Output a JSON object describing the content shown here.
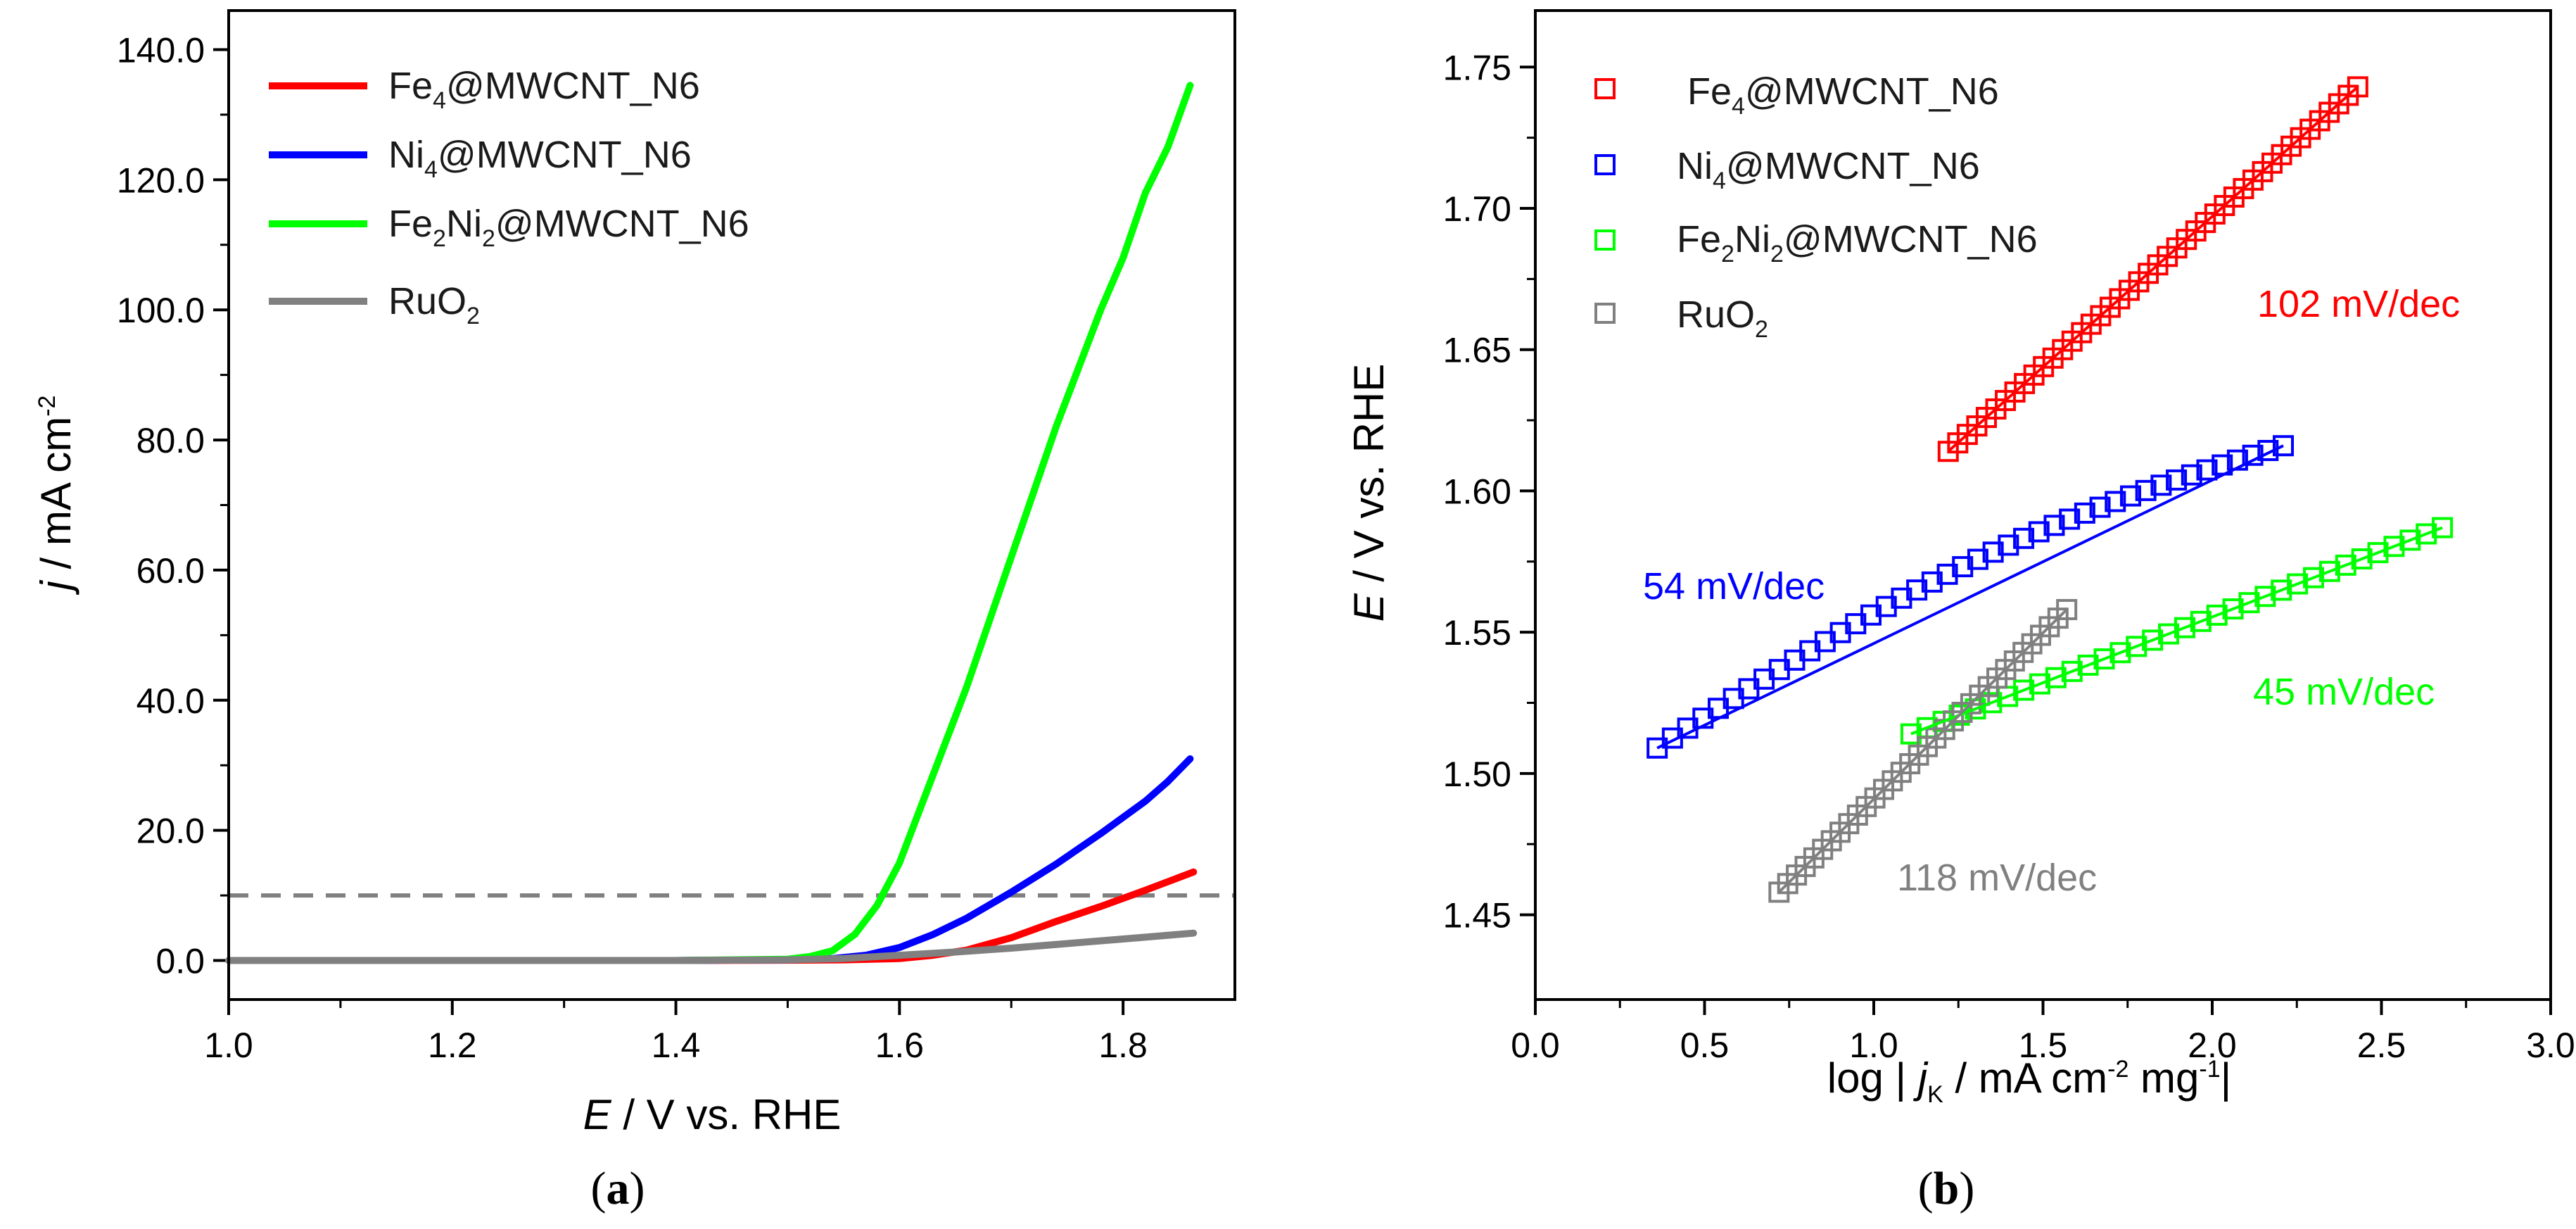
{
  "chart_data": [
    {
      "type": "line",
      "panel_label": "(a)",
      "panel_paren_open": "(",
      "panel_letter": "a",
      "panel_paren_close": ")",
      "xlabel_symbol": "E",
      "xlabel_rest": " / V vs. RHE",
      "ylabel_symbol": "j",
      "ylabel_rest": " / mA cm",
      "ylabel_sup": "-2",
      "xlim": [
        1.0,
        1.9
      ],
      "ylim": [
        -6,
        146
      ],
      "xticks": [
        "1.0",
        "1.2",
        "1.4",
        "1.6",
        "1.8"
      ],
      "xtick_values": [
        1.0,
        1.2,
        1.4,
        1.6,
        1.8
      ],
      "yticks": [
        "0.0",
        "20.0",
        "40.0",
        "60.0",
        "80.0",
        "100.0",
        "120.0",
        "140.0"
      ],
      "ytick_values": [
        0,
        20,
        40,
        60,
        80,
        100,
        120,
        140
      ],
      "reference_line": {
        "y": 10,
        "style": "dashed",
        "color": "#808080"
      },
      "legend_position": "top-left",
      "series": [
        {
          "name": "Fe4@MWCNT_N6",
          "legend_main": "Fe",
          "legend_sub": "4",
          "legend_rest": "@MWCNT_N6",
          "color": "#ff0000",
          "x": [
            1.0,
            1.2,
            1.4,
            1.5,
            1.55,
            1.6,
            1.63,
            1.66,
            1.7,
            1.74,
            1.78,
            1.82,
            1.863
          ],
          "y": [
            0,
            0,
            0,
            0.05,
            0.1,
            0.3,
            0.8,
            1.6,
            3.5,
            6.0,
            8.3,
            10.8,
            13.6
          ]
        },
        {
          "name": "Ni4@MWCNT_N6",
          "legend_main": "Ni",
          "legend_sub": "4",
          "legend_rest": "@MWCNT_N6",
          "color": "#0000ff",
          "x": [
            1.0,
            1.2,
            1.4,
            1.5,
            1.54,
            1.57,
            1.6,
            1.63,
            1.66,
            1.7,
            1.74,
            1.78,
            1.8,
            1.82,
            1.84,
            1.86
          ],
          "y": [
            0,
            0,
            0,
            0.1,
            0.3,
            0.8,
            2.0,
            4.0,
            6.5,
            10.5,
            14.8,
            19.5,
            22.0,
            24.5,
            27.5,
            31.0
          ]
        },
        {
          "name": "Fe2Ni2@MWCNT_N6",
          "legend_main": "Fe",
          "legend_sub": "2",
          "legend_mid": "Ni",
          "legend_sub2": "2",
          "legend_rest": "@MWCNT_N6",
          "color": "#00ff00",
          "x": [
            1.0,
            1.2,
            1.4,
            1.5,
            1.52,
            1.54,
            1.56,
            1.58,
            1.6,
            1.62,
            1.64,
            1.66,
            1.7,
            1.74,
            1.78,
            1.8,
            1.82,
            1.84,
            1.86
          ],
          "y": [
            0,
            0,
            0,
            0.2,
            0.6,
            1.5,
            4.0,
            8.5,
            15.0,
            24.0,
            33.0,
            42.0,
            62.0,
            82.0,
            100.0,
            108.0,
            118.0,
            125.0,
            134.5
          ]
        },
        {
          "name": "RuO2",
          "legend_main": "RuO",
          "legend_sub": "2",
          "legend_rest": "",
          "color": "#808080",
          "x": [
            1.0,
            1.2,
            1.4,
            1.5,
            1.55,
            1.6,
            1.65,
            1.7,
            1.75,
            1.8,
            1.863
          ],
          "y": [
            0,
            0,
            0,
            0.1,
            0.3,
            0.8,
            1.3,
            1.9,
            2.6,
            3.3,
            4.2
          ]
        }
      ]
    },
    {
      "type": "scatter",
      "panel_label": "(b)",
      "panel_paren_open": "(",
      "panel_letter": "b",
      "panel_paren_close": ")",
      "xlabel_pre": "log | ",
      "xlabel_symbol": "j",
      "xlabel_sub": "K",
      "xlabel_mid": " / mA cm",
      "xlabel_sup1": "-2",
      "xlabel_mid2": " mg",
      "xlabel_sup2": "-1",
      "xlabel_post": "|",
      "ylabel_symbol": "E",
      "ylabel_rest": " / V vs. RHE",
      "xlim": [
        0.0,
        3.0
      ],
      "ylim": [
        1.42,
        1.77
      ],
      "xticks": [
        "0.0",
        "0.5",
        "1.0",
        "1.5",
        "2.0",
        "2.5",
        "3.0"
      ],
      "xtick_values": [
        0.0,
        0.5,
        1.0,
        1.5,
        2.0,
        2.5,
        3.0
      ],
      "yticks": [
        "1.45",
        "1.50",
        "1.55",
        "1.60",
        "1.65",
        "1.70",
        "1.75"
      ],
      "ytick_values": [
        1.45,
        1.5,
        1.55,
        1.6,
        1.65,
        1.7,
        1.75
      ],
      "legend_position": "top-left",
      "series": [
        {
          "name": "Fe4@MWCNT_N6",
          "legend_main": "Fe",
          "legend_sub": "4",
          "legend_rest": "@MWCNT_N6",
          "color": "#ff0000",
          "x_range": [
            1.22,
            2.43
          ],
          "y_range": [
            1.614,
            1.743
          ],
          "n_points": 44,
          "tafel_slope_label": "102 mV/dec"
        },
        {
          "name": "Ni4@MWCNT_N6",
          "legend_main": "Ni",
          "legend_sub": "4",
          "legend_rest": "@MWCNT_N6",
          "color": "#0000ff",
          "x_range": [
            0.36,
            2.21
          ],
          "y_range": [
            1.509,
            1.616
          ],
          "n_points": 42,
          "tafel_slope_label": "54 mV/dec"
        },
        {
          "name": "Fe2Ni2@MWCNT_N6",
          "legend_main": "Fe",
          "legend_sub": "2",
          "legend_mid": "Ni",
          "legend_sub2": "2",
          "legend_rest": "@MWCNT_N6",
          "color": "#00ff00",
          "x_range": [
            1.11,
            2.68
          ],
          "y_range": [
            1.514,
            1.587
          ],
          "n_points": 34,
          "tafel_slope_label": "45 mV/dec"
        },
        {
          "name": "RuO2",
          "legend_main": "RuO",
          "legend_sub": "2",
          "legend_rest": "",
          "color": "#808080",
          "x_range": [
            0.72,
            1.57
          ],
          "y_range": [
            1.458,
            1.558
          ],
          "n_points": 34,
          "tafel_slope_label": "118 mV/dec"
        }
      ]
    }
  ]
}
